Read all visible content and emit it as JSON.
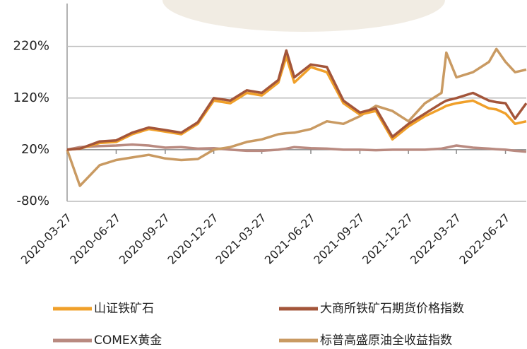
{
  "chart_data": {
    "type": "line",
    "x": [
      "2020-03-27",
      "2020-04-20",
      "2020-05-27",
      "2020-06-27",
      "2020-07-27",
      "2020-08-27",
      "2020-09-27",
      "2020-10-27",
      "2020-11-27",
      "2020-12-27",
      "2021-01-27",
      "2021-02-27",
      "2021-03-27",
      "2021-04-27",
      "2021-05-12",
      "2021-05-27",
      "2021-06-27",
      "2021-07-27",
      "2021-08-27",
      "2021-09-27",
      "2021-10-27",
      "2021-11-27",
      "2021-12-27",
      "2022-01-27",
      "2022-02-27",
      "2022-03-08",
      "2022-03-27",
      "2022-04-27",
      "2022-05-27",
      "2022-06-10",
      "2022-06-27",
      "2022-07-15",
      "2022-08-05"
    ],
    "xlim": [
      "2020-03-27",
      "2022-08-05"
    ],
    "xticks": [
      "2020-03-27",
      "2020-06-27",
      "2020-09-27",
      "2020-12-27",
      "2021-03-27",
      "2021-06-27",
      "2021-09-27",
      "2021-12-27",
      "2022-03-27",
      "2022-06-27"
    ],
    "ylim": [
      -80,
      303
    ],
    "yticks": [
      {
        "value": 220,
        "label": "220%"
      },
      {
        "value": 120,
        "label": "120%"
      },
      {
        "value": 20,
        "label": "20%"
      },
      {
        "value": -80,
        "label": "-80%"
      }
    ],
    "x_axis_crosses": 20,
    "series": [
      {
        "name": "山证铁矿石",
        "color": "#f0a02a",
        "values": [
          20,
          22,
          33,
          35,
          50,
          60,
          55,
          50,
          70,
          115,
          110,
          130,
          125,
          150,
          200,
          150,
          180,
          170,
          110,
          88,
          95,
          40,
          65,
          85,
          100,
          105,
          110,
          115,
          100,
          98,
          90,
          70,
          75
        ]
      },
      {
        "name": "大商所铁矿石期货价格指数",
        "color": "#a3553a",
        "values": [
          20,
          22,
          36,
          38,
          53,
          63,
          58,
          53,
          73,
          120,
          115,
          135,
          130,
          155,
          212,
          160,
          185,
          180,
          115,
          92,
          100,
          45,
          70,
          90,
          110,
          115,
          120,
          130,
          115,
          112,
          110,
          80,
          110
        ]
      },
      {
        "name": "COMEX黄金",
        "color": "#b98a80",
        "values": [
          20,
          25,
          27,
          28,
          30,
          28,
          24,
          25,
          22,
          23,
          20,
          18,
          18,
          20,
          22,
          25,
          23,
          22,
          20,
          20,
          19,
          20,
          20,
          20,
          22,
          24,
          28,
          24,
          22,
          21,
          20,
          18,
          16
        ]
      },
      {
        "name": "标普高盛原油全收益指数",
        "color": "#c99a62",
        "values": [
          20,
          -50,
          -10,
          0,
          5,
          10,
          3,
          0,
          2,
          20,
          25,
          35,
          40,
          50,
          52,
          53,
          60,
          75,
          70,
          85,
          105,
          95,
          75,
          110,
          130,
          208,
          160,
          170,
          190,
          215,
          190,
          170,
          175
        ]
      }
    ]
  }
}
